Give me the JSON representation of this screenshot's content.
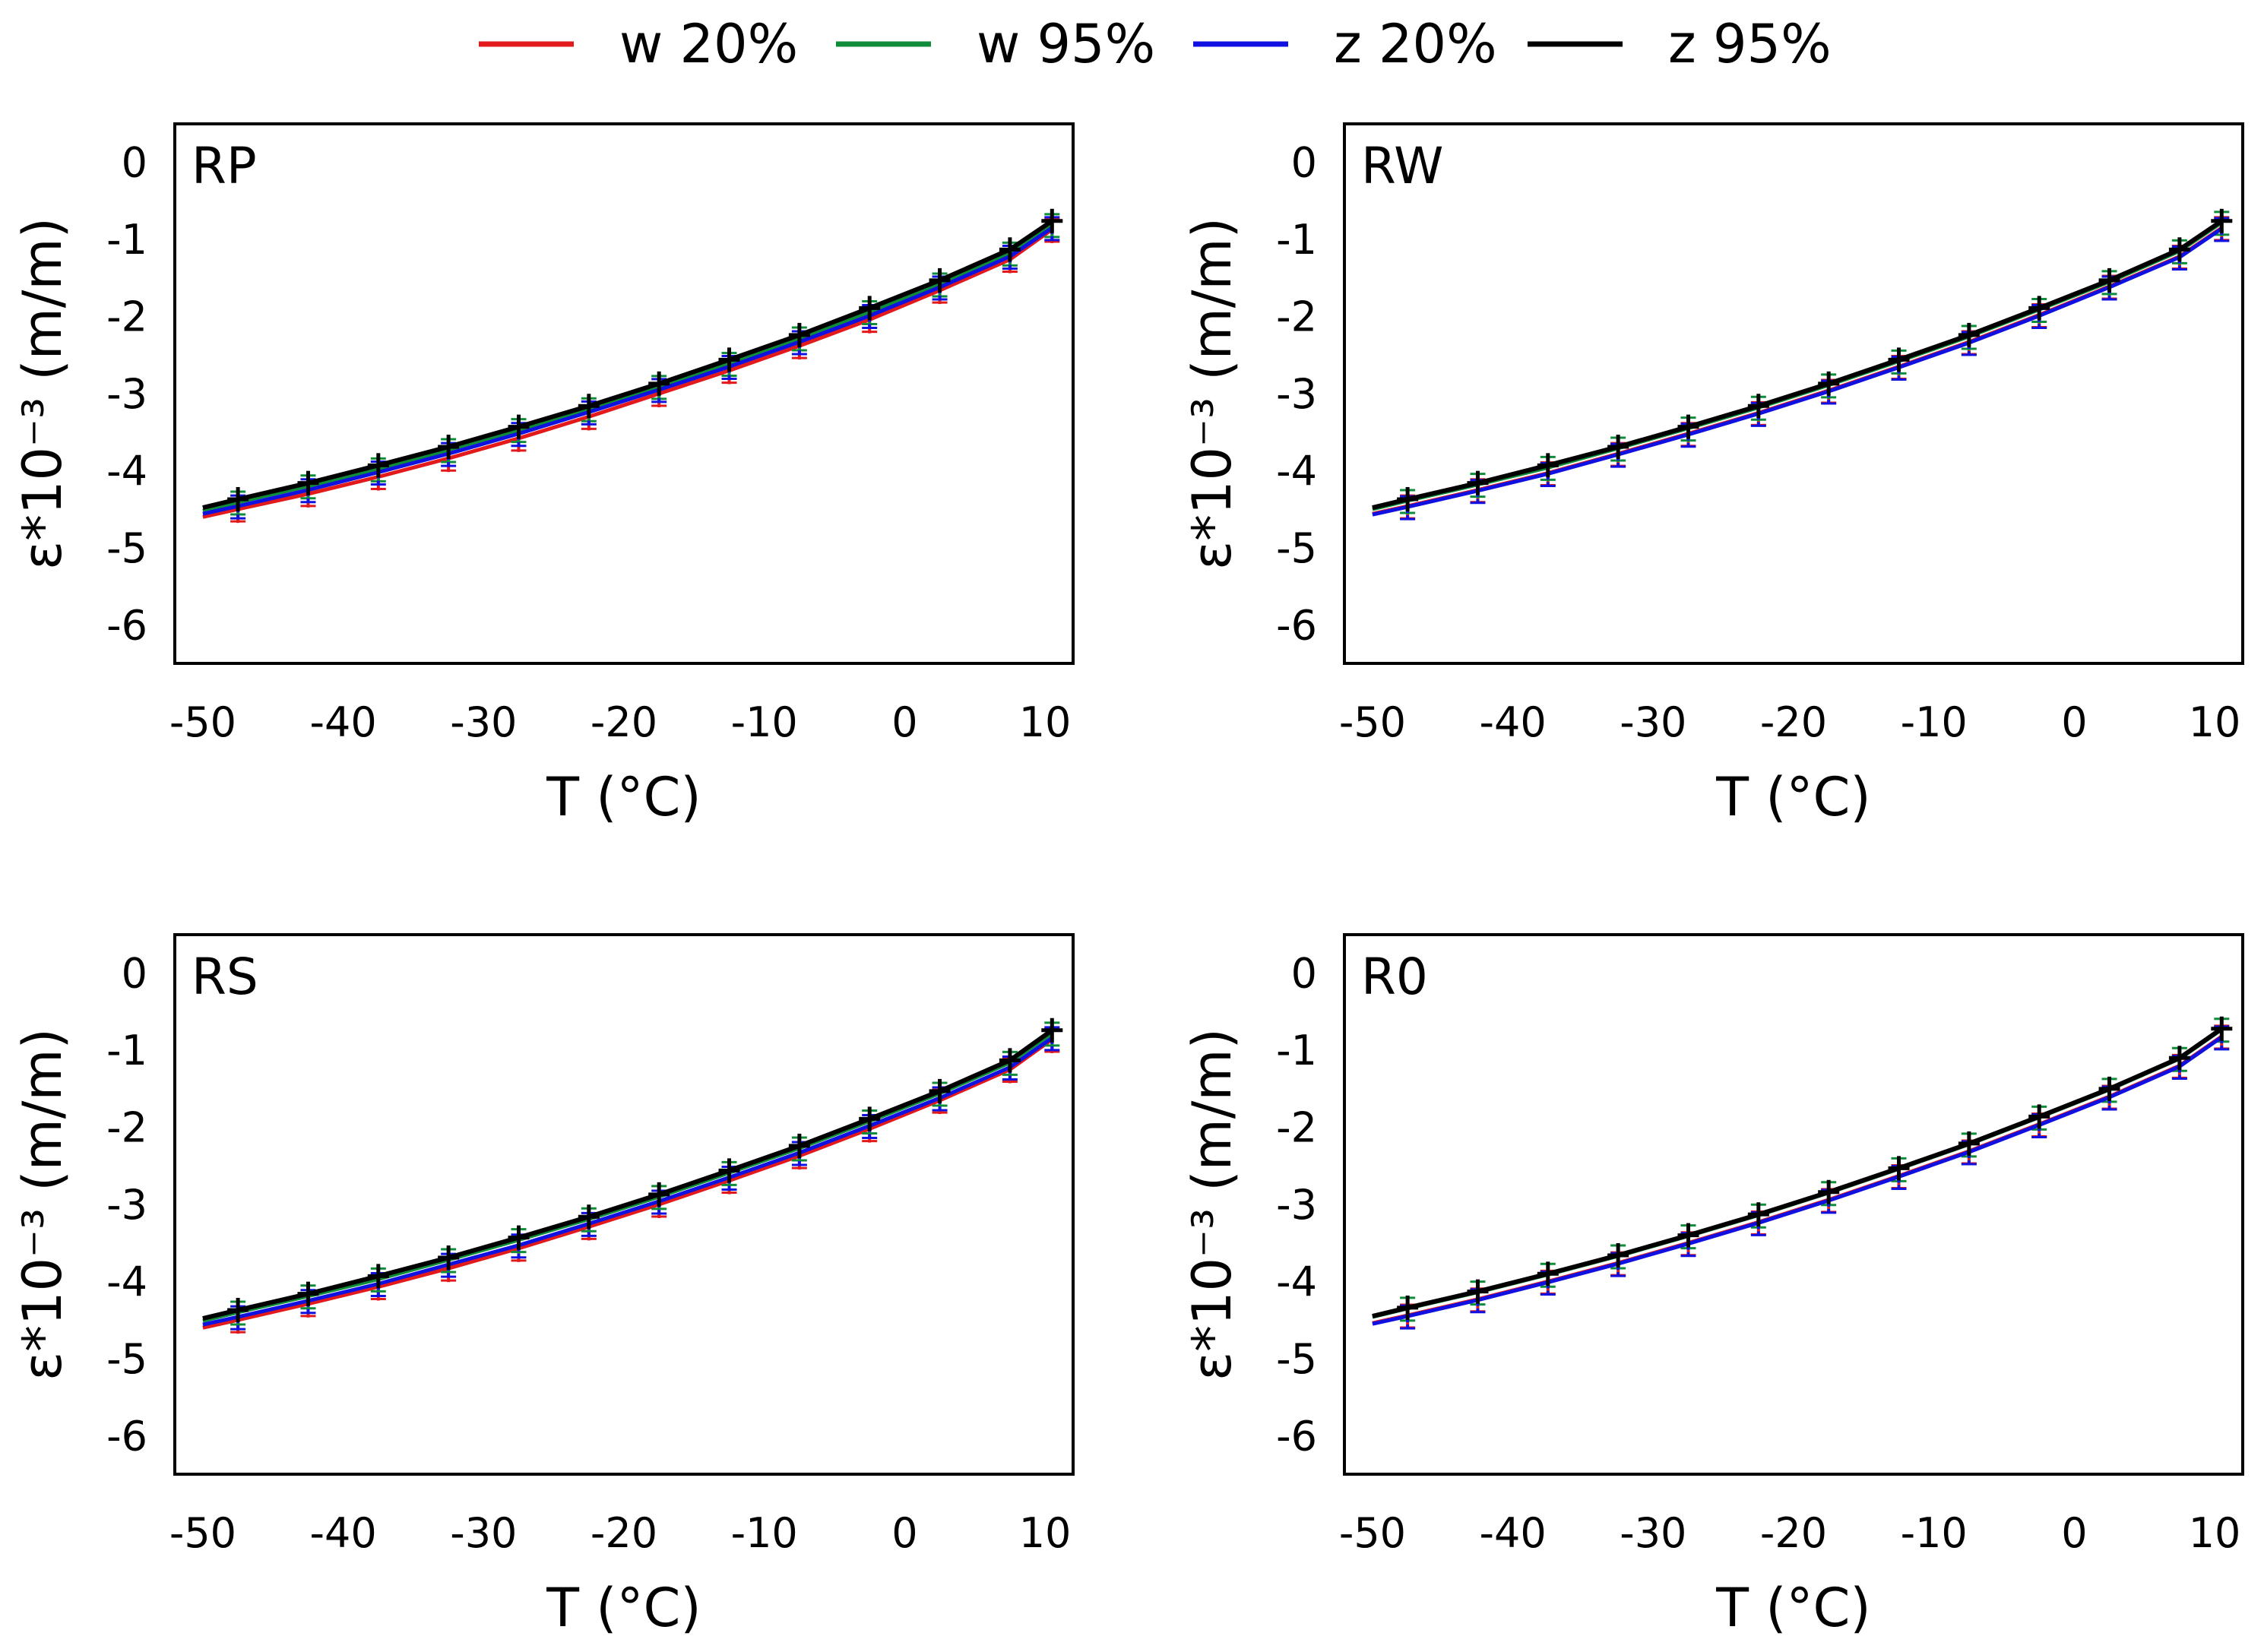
{
  "legend": {
    "position": "top",
    "entries": [
      {
        "label": "w 20%",
        "color": "#e31a1c"
      },
      {
        "label": "w 95%",
        "color": "#0f8c3a"
      },
      {
        "label": "z 20%",
        "color": "#1010e0"
      },
      {
        "label": "z 95%",
        "color": "#000000"
      }
    ]
  },
  "chart_data": [
    {
      "type": "line",
      "panel_label": "RP",
      "xlabel": "T (°C)",
      "ylabel": "ε*10⁻³ (m/m)",
      "xlim": [
        -52,
        12
      ],
      "ylim": [
        -6.5,
        0.5
      ],
      "xticks": [
        -50,
        -40,
        -30,
        -20,
        -10,
        0,
        10
      ],
      "yticks": [
        0,
        -1,
        -2,
        -3,
        -4,
        -5,
        -6
      ],
      "x": [
        -50,
        -47.5,
        -42.5,
        -37.5,
        -32.5,
        -27.5,
        -22.5,
        -17.5,
        -12.5,
        -7.5,
        -2.5,
        2.5,
        7.5,
        10.5
      ],
      "series": [
        {
          "name": "w 20%",
          "values": [
            -4.6,
            -4.5,
            -4.3,
            -4.08,
            -3.84,
            -3.58,
            -3.3,
            -3.0,
            -2.7,
            -2.38,
            -2.04,
            -1.66,
            -1.26,
            -0.87
          ]
        },
        {
          "name": "w 95%",
          "values": [
            -4.52,
            -4.41,
            -4.2,
            -3.98,
            -3.73,
            -3.47,
            -3.2,
            -2.91,
            -2.61,
            -2.28,
            -1.94,
            -1.58,
            -1.18,
            -0.81
          ]
        },
        {
          "name": "z 20%",
          "values": [
            -4.56,
            -4.46,
            -4.25,
            -4.02,
            -3.78,
            -3.52,
            -3.24,
            -2.95,
            -2.65,
            -2.33,
            -1.99,
            -1.62,
            -1.22,
            -0.85
          ]
        },
        {
          "name": "z 95%",
          "values": [
            -4.48,
            -4.37,
            -4.16,
            -3.93,
            -3.69,
            -3.43,
            -3.16,
            -2.87,
            -2.56,
            -2.24,
            -1.89,
            -1.53,
            -1.13,
            -0.76
          ]
        }
      ]
    },
    {
      "type": "line",
      "panel_label": "RW",
      "xlabel": "T (°C)",
      "ylabel": "ε*10⁻³ (m/m)",
      "xlim": [
        -52,
        12
      ],
      "ylim": [
        -6.5,
        0.5
      ],
      "xticks": [
        -50,
        -40,
        -30,
        -20,
        -10,
        0,
        10
      ],
      "yticks": [
        0,
        -1,
        -2,
        -3,
        -4,
        -5,
        -6
      ],
      "x": [
        -50,
        -47.5,
        -42.5,
        -37.5,
        -32.5,
        -27.5,
        -22.5,
        -17.5,
        -12.5,
        -7.5,
        -2.5,
        2.5,
        7.5,
        10.5
      ],
      "series": [
        {
          "name": "w 20%",
          "values": [
            -4.56,
            -4.46,
            -4.25,
            -4.03,
            -3.78,
            -3.52,
            -3.25,
            -2.96,
            -2.65,
            -2.33,
            -1.98,
            -1.61,
            -1.22,
            -0.85
          ]
        },
        {
          "name": "w 95%",
          "values": [
            -4.5,
            -4.39,
            -4.18,
            -3.96,
            -3.71,
            -3.45,
            -3.18,
            -2.89,
            -2.58,
            -2.26,
            -1.91,
            -1.55,
            -1.15,
            -0.78
          ]
        },
        {
          "name": "z 20%",
          "values": [
            -4.57,
            -4.47,
            -4.26,
            -4.04,
            -3.79,
            -3.53,
            -3.26,
            -2.97,
            -2.66,
            -2.34,
            -1.99,
            -1.62,
            -1.23,
            -0.86
          ]
        },
        {
          "name": "z 95%",
          "values": [
            -4.48,
            -4.37,
            -4.16,
            -3.93,
            -3.69,
            -3.43,
            -3.16,
            -2.87,
            -2.56,
            -2.24,
            -1.89,
            -1.53,
            -1.13,
            -0.76
          ]
        }
      ]
    },
    {
      "type": "line",
      "panel_label": "RS",
      "xlabel": "T (°C)",
      "ylabel": "ε*10⁻³ (m/m)",
      "xlim": [
        -52,
        12
      ],
      "ylim": [
        -6.5,
        0.5
      ],
      "xticks": [
        -50,
        -40,
        -30,
        -20,
        -10,
        0,
        10
      ],
      "yticks": [
        0,
        -1,
        -2,
        -3,
        -4,
        -5,
        -6
      ],
      "x": [
        -50,
        -47.5,
        -42.5,
        -37.5,
        -32.5,
        -27.5,
        -22.5,
        -17.5,
        -12.5,
        -7.5,
        -2.5,
        2.5,
        7.5,
        10.5
      ],
      "series": [
        {
          "name": "w 20%",
          "values": [
            -4.6,
            -4.5,
            -4.29,
            -4.07,
            -3.83,
            -3.57,
            -3.29,
            -3.0,
            -2.69,
            -2.37,
            -2.02,
            -1.65,
            -1.25,
            -0.86
          ]
        },
        {
          "name": "w 95%",
          "values": [
            -4.51,
            -4.4,
            -4.19,
            -3.97,
            -3.72,
            -3.46,
            -3.19,
            -2.9,
            -2.59,
            -2.27,
            -1.92,
            -1.56,
            -1.16,
            -0.78
          ]
        },
        {
          "name": "z 20%",
          "values": [
            -4.56,
            -4.46,
            -4.25,
            -4.03,
            -3.78,
            -3.53,
            -3.25,
            -2.96,
            -2.65,
            -2.33,
            -1.98,
            -1.62,
            -1.22,
            -0.84
          ]
        },
        {
          "name": "z 95%",
          "values": [
            -4.48,
            -4.37,
            -4.16,
            -3.93,
            -3.69,
            -3.43,
            -3.16,
            -2.87,
            -2.56,
            -2.24,
            -1.89,
            -1.53,
            -1.13,
            -0.74
          ]
        }
      ]
    },
    {
      "type": "line",
      "panel_label": "R0",
      "xlabel": "T (°C)",
      "ylabel": "ε*10⁻³ (m/m)",
      "xlim": [
        -52,
        12
      ],
      "ylim": [
        -6.5,
        0.5
      ],
      "xticks": [
        -50,
        -40,
        -30,
        -20,
        -10,
        0,
        10
      ],
      "yticks": [
        0,
        -1,
        -2,
        -3,
        -4,
        -5,
        -6
      ],
      "x": [
        -50,
        -47.5,
        -42.5,
        -37.5,
        -32.5,
        -27.5,
        -22.5,
        -17.5,
        -12.5,
        -7.5,
        -2.5,
        2.5,
        7.5,
        10.5
      ],
      "series": [
        {
          "name": "w 20%",
          "values": [
            -4.54,
            -4.44,
            -4.23,
            -4.0,
            -3.76,
            -3.5,
            -3.23,
            -2.94,
            -2.63,
            -2.31,
            -1.96,
            -1.6,
            -1.2,
            -0.82
          ]
        },
        {
          "name": "w 95%",
          "values": [
            -4.46,
            -4.35,
            -4.14,
            -3.91,
            -3.67,
            -3.41,
            -3.14,
            -2.85,
            -2.54,
            -2.22,
            -1.87,
            -1.51,
            -1.11,
            -0.73
          ]
        },
        {
          "name": "z 20%",
          "values": [
            -4.55,
            -4.45,
            -4.24,
            -4.01,
            -3.77,
            -3.51,
            -3.24,
            -2.95,
            -2.64,
            -2.32,
            -1.97,
            -1.61,
            -1.21,
            -0.83
          ]
        },
        {
          "name": "z 95%",
          "values": [
            -4.45,
            -4.34,
            -4.13,
            -3.9,
            -3.66,
            -3.4,
            -3.13,
            -2.84,
            -2.53,
            -2.21,
            -1.86,
            -1.5,
            -1.1,
            -0.72
          ]
        }
      ]
    }
  ]
}
